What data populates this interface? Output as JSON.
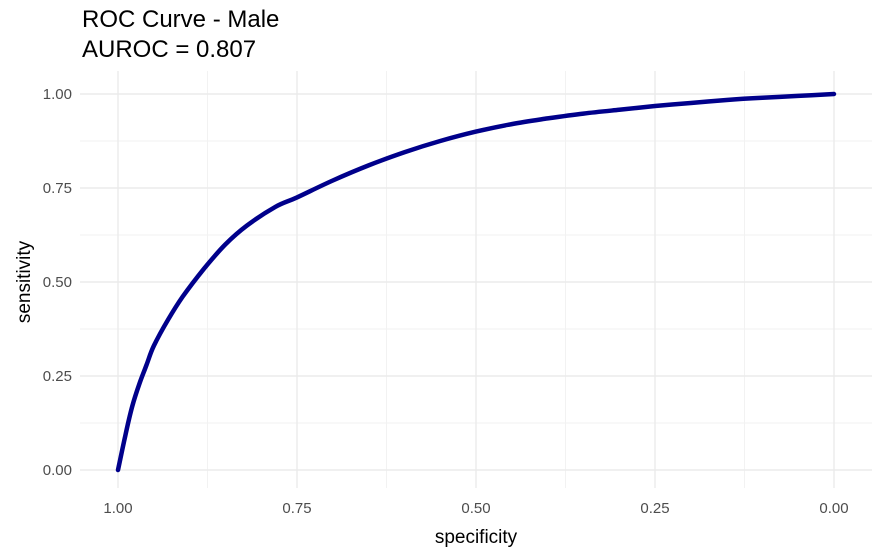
{
  "chart_data": {
    "type": "line",
    "title_lines": [
      "ROC Curve - Male",
      "AUROC = 0.807"
    ],
    "xlabel": "specificity",
    "ylabel": "sensitivity",
    "x_reversed": true,
    "xlim": [
      1.0,
      0.0
    ],
    "ylim": [
      0.0,
      1.0
    ],
    "x_ticks": [
      1.0,
      0.75,
      0.5,
      0.25,
      0.0
    ],
    "x_tick_labels": [
      "1.00",
      "0.75",
      "0.50",
      "0.25",
      "0.00"
    ],
    "y_ticks": [
      0.0,
      0.25,
      0.5,
      0.75,
      1.0
    ],
    "y_tick_labels": [
      "0.00",
      "0.25",
      "0.50",
      "0.75",
      "1.00"
    ],
    "grid": true,
    "legend": "none",
    "series": [
      {
        "color": "#00008b",
        "x": [
          1.0,
          0.99,
          0.98,
          0.97,
          0.96,
          0.95,
          0.93,
          0.91,
          0.88,
          0.85,
          0.82,
          0.78,
          0.75,
          0.7,
          0.65,
          0.6,
          0.55,
          0.5,
          0.45,
          0.4,
          0.35,
          0.3,
          0.25,
          0.2,
          0.15,
          0.1,
          0.05,
          0.0
        ],
        "y": [
          0.0,
          0.09,
          0.17,
          0.23,
          0.28,
          0.33,
          0.4,
          0.46,
          0.535,
          0.6,
          0.65,
          0.7,
          0.725,
          0.77,
          0.81,
          0.845,
          0.875,
          0.9,
          0.92,
          0.935,
          0.948,
          0.958,
          0.968,
          0.976,
          0.984,
          0.99,
          0.995,
          1.0
        ]
      }
    ]
  }
}
